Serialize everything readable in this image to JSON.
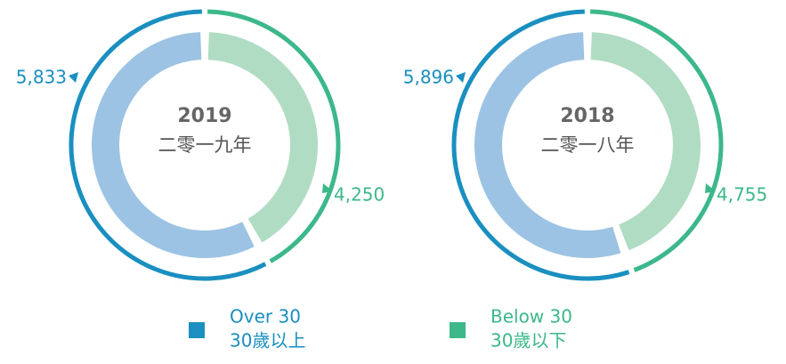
{
  "chart_data": [
    {
      "type": "pie",
      "title": "2019",
      "subtitle": "二零一九年",
      "categories": [
        "Over 30",
        "Below 30"
      ],
      "values": [
        5833,
        4250
      ],
      "value_labels": [
        "5,833",
        "4,250"
      ],
      "colors": [
        "#1a8fc0",
        "#3cb88a"
      ],
      "light_colors": [
        "#9cc3e3",
        "#b0dcc3"
      ]
    },
    {
      "type": "pie",
      "title": "2018",
      "subtitle": "二零一八年",
      "categories": [
        "Over 30",
        "Below 30"
      ],
      "values": [
        5896,
        4755
      ],
      "value_labels": [
        "5,896",
        "4,755"
      ],
      "colors": [
        "#1a8fc0",
        "#3cb88a"
      ],
      "light_colors": [
        "#9cc3e3",
        "#b0dcc3"
      ]
    }
  ],
  "legend": [
    {
      "label": "Over 30",
      "sublabel": "30歲以上",
      "color": "#1a8fc0"
    },
    {
      "label": "Below 30",
      "sublabel": "30歲以下",
      "color": "#3cb88a"
    }
  ]
}
